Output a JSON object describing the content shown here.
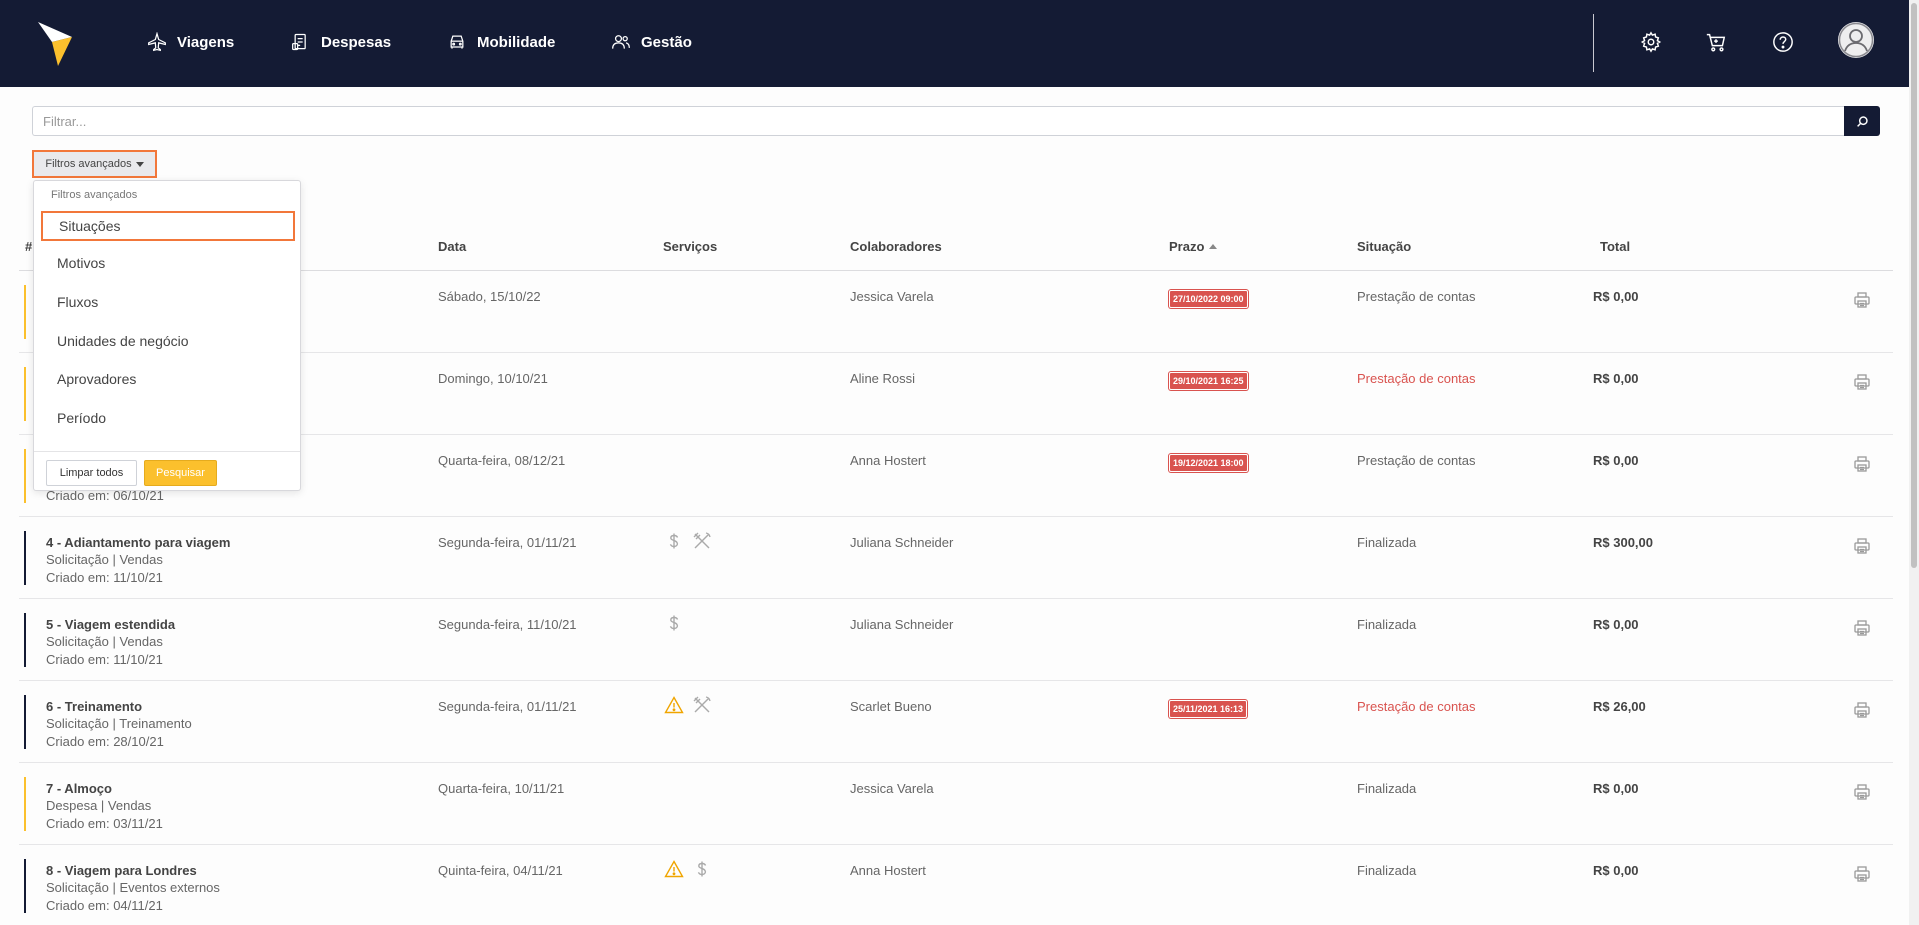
{
  "nav": {
    "items": [
      {
        "label": "Viagens",
        "icon": "airplane-icon"
      },
      {
        "label": "Despesas",
        "icon": "receipt-icon"
      },
      {
        "label": "Mobilidade",
        "icon": "car-icon"
      },
      {
        "label": "Gestão",
        "icon": "users-icon"
      }
    ],
    "icons": [
      "gear-icon",
      "cart-icon",
      "help-icon",
      "user-avatar"
    ],
    "colors": {
      "background": "#141b34",
      "logo": "#fbc02d"
    }
  },
  "filter": {
    "placeholder": "Filtrar...",
    "advanced_label": "Filtros avançados"
  },
  "dropdown": {
    "header": "Filtros avançados",
    "items": [
      "Situações",
      "Motivos",
      "Fluxos",
      "Unidades de negócio",
      "Aprovadores",
      "Período"
    ],
    "clear_label": "Limpar todos",
    "search_label": "Pesquisar"
  },
  "table": {
    "headers": {
      "hash": "#",
      "date": "Data",
      "services": "Serviços",
      "colab": "Colaboradores",
      "deadline": "Prazo",
      "status": "Situação",
      "total": "Total"
    },
    "rows": [
      {
        "title": "",
        "sub": "",
        "created": "",
        "date": "Sábado, 15/10/22",
        "services": [],
        "colab": "Jessica Varela",
        "deadline": "27/10/2022 09:00",
        "status": "Prestação de contas",
        "status_red": false,
        "total": "R$ 0,00",
        "bar": "#fbc02d"
      },
      {
        "title": "",
        "sub": "",
        "created": "",
        "date": "Domingo, 10/10/21",
        "services": [],
        "colab": "Aline Rossi",
        "deadline": "29/10/2021 16:25",
        "status": "Prestação de contas",
        "status_red": true,
        "total": "R$ 0,00",
        "bar": "#fbc02d"
      },
      {
        "title": "",
        "sub": "",
        "created": "Criado em: 06/10/21",
        "date": "Quarta-feira, 08/12/21",
        "services": [],
        "colab": "Anna Hostert",
        "deadline": "19/12/2021 18:00",
        "status": "Prestação de contas",
        "status_red": false,
        "total": "R$ 0,00",
        "bar": "#fbc02d"
      },
      {
        "title": "4 - Adiantamento para viagem",
        "sub": "Solicitação | Vendas",
        "created": "Criado em: 11/10/21",
        "date": "Segunda-feira, 01/11/21",
        "services": [
          "dollar-icon",
          "cutlery-icon"
        ],
        "colab": "Juliana Schneider",
        "deadline": "",
        "status": "Finalizada",
        "status_red": false,
        "total": "R$ 300,00",
        "bar": "#141b34"
      },
      {
        "title": "5 - Viagem estendida",
        "sub": "Solicitação | Vendas",
        "created": "Criado em: 11/10/21",
        "date": "Segunda-feira, 11/10/21",
        "services": [
          "dollar-icon"
        ],
        "colab": "Juliana Schneider",
        "deadline": "",
        "status": "Finalizada",
        "status_red": false,
        "total": "R$ 0,00",
        "bar": "#141b34"
      },
      {
        "title": "6 - Treinamento",
        "sub": "Solicitação | Treinamento",
        "created": "Criado em: 28/10/21",
        "date": "Segunda-feira, 01/11/21",
        "services": [
          "warning-icon",
          "cutlery-icon"
        ],
        "colab": "Scarlet Bueno",
        "deadline": "25/11/2021 16:13",
        "status": "Prestação de contas",
        "status_red": true,
        "total": "R$ 26,00",
        "bar": "#141b34"
      },
      {
        "title": "7 - Almoço",
        "sub": "Despesa | Vendas",
        "created": "Criado em: 03/11/21",
        "date": "Quarta-feira, 10/11/21",
        "services": [],
        "colab": "Jessica Varela",
        "deadline": "",
        "status": "Finalizada",
        "status_red": false,
        "total": "R$ 0,00",
        "bar": "#fbc02d"
      },
      {
        "title": "8 - Viagem para Londres",
        "sub": "Solicitação | Eventos externos",
        "created": "Criado em: 04/11/21",
        "date": "Quinta-feira, 04/11/21",
        "services": [
          "warning-icon",
          "dollar-icon"
        ],
        "colab": "Anna Hostert",
        "deadline": "",
        "status": "Finalizada",
        "status_red": false,
        "total": "R$ 0,00",
        "bar": "#141b34"
      }
    ]
  }
}
